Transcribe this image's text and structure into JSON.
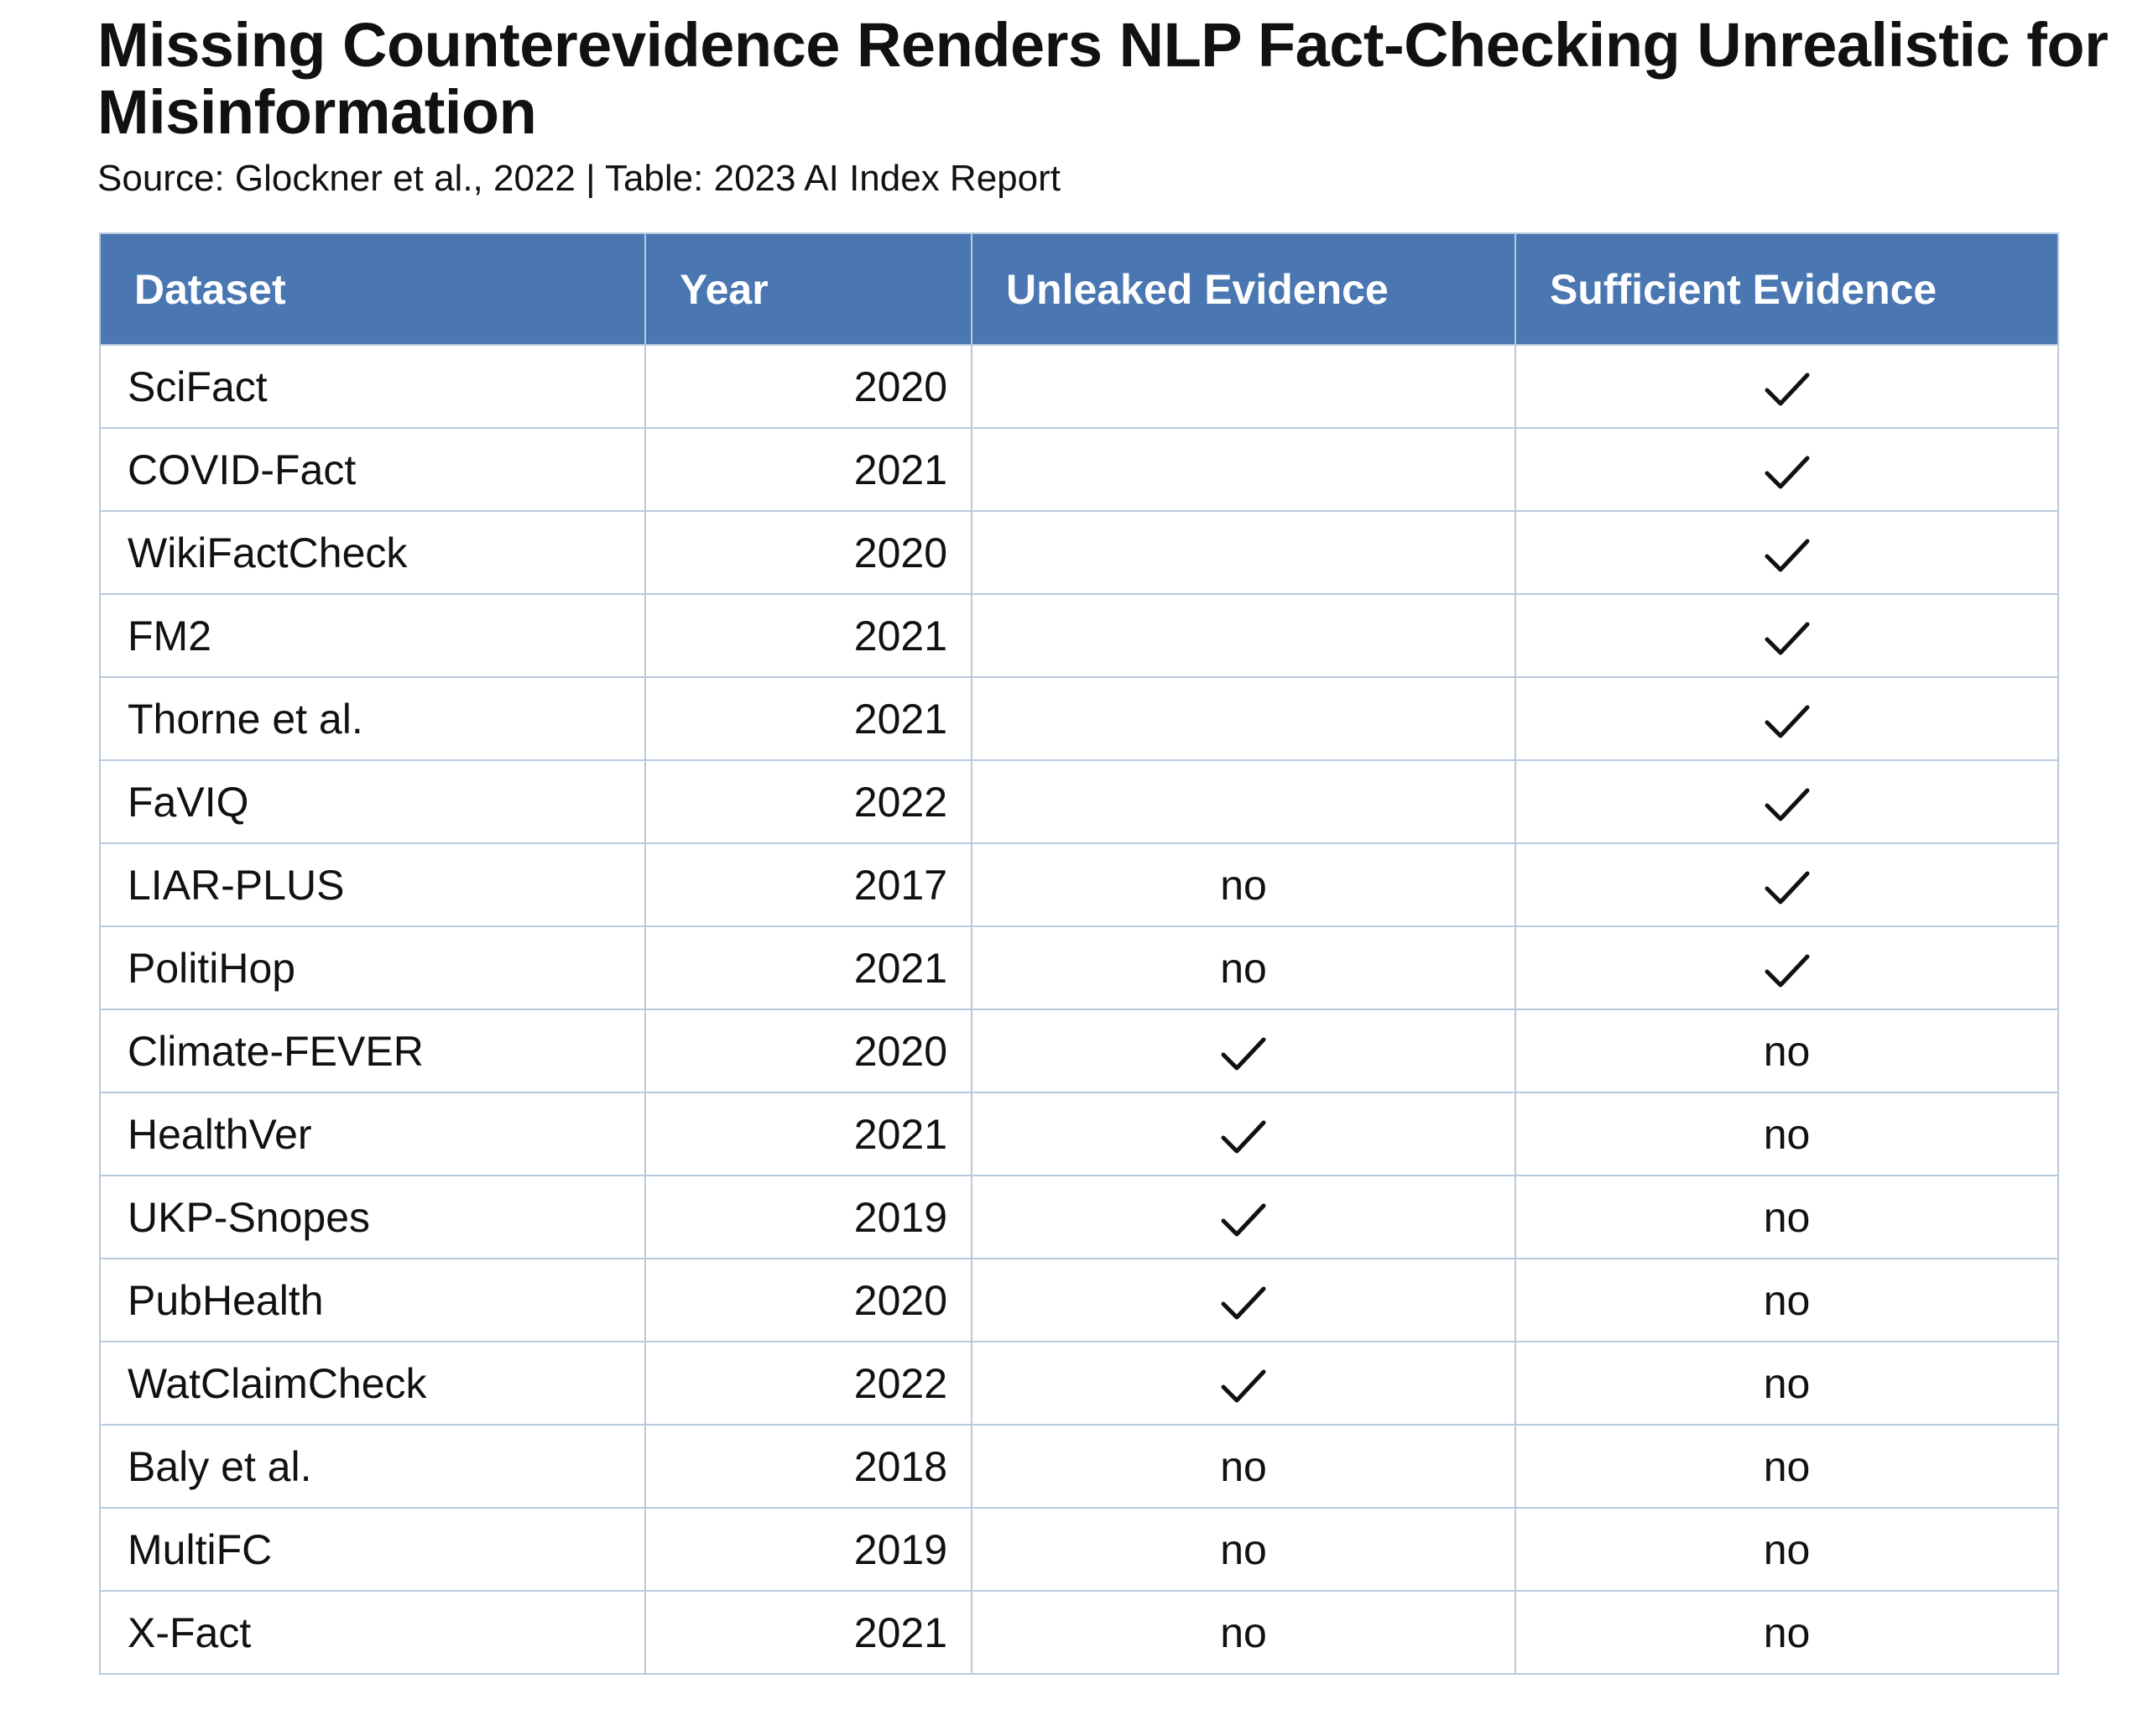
{
  "title": "Missing Counterevidence Renders NLP Fact-Checking Unrealistic for Misinformation",
  "subtitle": "Source: Glockner et al., 2022 | Table: 2023 AI Index Report",
  "colors": {
    "header_background": "#4a77b2",
    "header_text": "#ffffff",
    "grid_lines": "#b9c9df"
  },
  "table": {
    "headers": [
      "Dataset",
      "Year",
      "Unleaked Evidence",
      "Sufficient Evidence"
    ],
    "check_symbol": "check-icon",
    "rows": [
      {
        "dataset": "SciFact",
        "year": "2020",
        "unleaked": "",
        "sufficient": "check"
      },
      {
        "dataset": "COVID-Fact",
        "year": "2021",
        "unleaked": "",
        "sufficient": "check"
      },
      {
        "dataset": "WikiFactCheck",
        "year": "2020",
        "unleaked": "",
        "sufficient": "check"
      },
      {
        "dataset": "FM2",
        "year": "2021",
        "unleaked": "",
        "sufficient": "check"
      },
      {
        "dataset": "Thorne et al.",
        "year": "2021",
        "unleaked": "",
        "sufficient": "check"
      },
      {
        "dataset": "FaVIQ",
        "year": "2022",
        "unleaked": "",
        "sufficient": "check"
      },
      {
        "dataset": "LIAR-PLUS",
        "year": "2017",
        "unleaked": "no",
        "sufficient": "check"
      },
      {
        "dataset": "PolitiHop",
        "year": "2021",
        "unleaked": "no",
        "sufficient": "check"
      },
      {
        "dataset": "Climate-FEVER",
        "year": "2020",
        "unleaked": "check",
        "sufficient": "no"
      },
      {
        "dataset": "HealthVer",
        "year": "2021",
        "unleaked": "check",
        "sufficient": "no"
      },
      {
        "dataset": "UKP-Snopes",
        "year": "2019",
        "unleaked": "check",
        "sufficient": "no"
      },
      {
        "dataset": "PubHealth",
        "year": "2020",
        "unleaked": "check",
        "sufficient": "no"
      },
      {
        "dataset": "WatClaimCheck",
        "year": "2022",
        "unleaked": "check",
        "sufficient": "no"
      },
      {
        "dataset": "Baly et al.",
        "year": "2018",
        "unleaked": "no",
        "sufficient": "no"
      },
      {
        "dataset": "MultiFC",
        "year": "2019",
        "unleaked": "no",
        "sufficient": "no"
      },
      {
        "dataset": "X-Fact",
        "year": "2021",
        "unleaked": "no",
        "sufficient": "no"
      }
    ]
  }
}
